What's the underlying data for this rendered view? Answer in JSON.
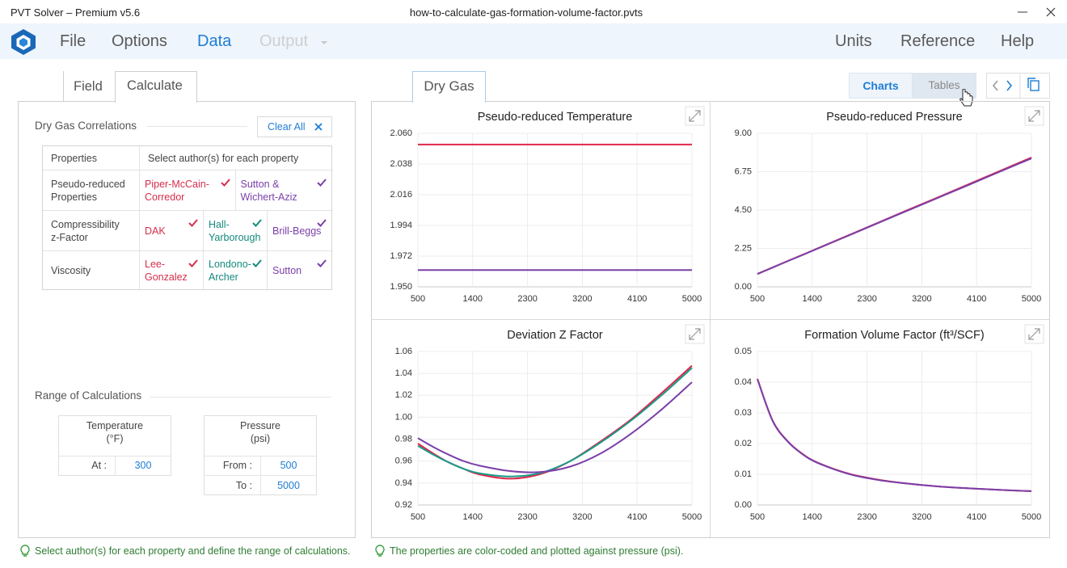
{
  "window": {
    "title": "PVT Solver – Premium v5.6",
    "file": "how-to-calculate-gas-formation-volume-factor.pvts"
  },
  "menu": {
    "left": [
      "File",
      "Options",
      "Data",
      "Output"
    ],
    "right": [
      "Units",
      "Reference",
      "Help"
    ]
  },
  "input": {
    "tabs": [
      "Field",
      "Calculate"
    ],
    "correlations": {
      "title": "Dry Gas Correlations",
      "clear": "Clear All",
      "header": [
        "Properties",
        "Select author(s) for each property"
      ],
      "rows": [
        {
          "property": "Pseudo-reduced Properties",
          "authors": [
            {
              "name": "Piper-McCain-Corredor",
              "color": "#d42e4c"
            },
            {
              "name": "Sutton & Wichert-Aziz",
              "color": "#7b3fa8"
            }
          ]
        },
        {
          "property": "Compressibility z-Factor",
          "authors": [
            {
              "name": "DAK",
              "color": "#d42e4c"
            },
            {
              "name": "Hall-Yarborough",
              "color": "#148a7c"
            },
            {
              "name": "Brill-Beggs",
              "color": "#7b3fa8"
            }
          ]
        },
        {
          "property": "Viscosity",
          "authors": [
            {
              "name": "Lee-Gonzalez",
              "color": "#d42e4c"
            },
            {
              "name": "Londono-Archer",
              "color": "#148a7c"
            },
            {
              "name": "Sutton",
              "color": "#7b3fa8"
            }
          ]
        }
      ]
    },
    "range": {
      "title": "Range of Calculations",
      "temperature": {
        "label": "Temperature",
        "unit": "(°F)",
        "at_label": "At :",
        "at": 300
      },
      "pressure": {
        "label": "Pressure",
        "unit": "(psi)",
        "from_label": "From :",
        "from": 500,
        "to_label": "To :",
        "to": 5000
      }
    }
  },
  "output": {
    "tab": "Dry Gas",
    "views": [
      "Charts",
      "Tables"
    ]
  },
  "hints": [
    "Select author(s) for each property and define the range of calculations.",
    "The properties are color-coded and plotted against pressure (psi)."
  ],
  "chart_data": [
    {
      "type": "line",
      "title": "Pseudo-reduced Temperature",
      "x": [
        500,
        750,
        1000,
        1250,
        1500,
        2000,
        2500,
        3000,
        3500,
        4000,
        4500,
        5000
      ],
      "xlim": [
        500,
        5000
      ],
      "xticks": [
        500,
        1400,
        2300,
        3200,
        4100,
        5000
      ],
      "ylim": [
        1.95,
        2.06
      ],
      "yticks": [
        {
          "value": 1.95,
          "label": "1.950"
        },
        1.972,
        1.994,
        2.016,
        2.038,
        {
          "value": 2.06,
          "label": "2.060"
        }
      ],
      "grid": true,
      "series": [
        {
          "color": "#e0264a",
          "values": [
            2.052,
            2.052,
            2.052,
            2.052,
            2.052,
            2.052,
            2.052,
            2.052,
            2.052,
            2.052,
            2.052,
            2.052
          ]
        },
        {
          "color": "#7a3fa8",
          "values": [
            1.962,
            1.962,
            1.962,
            1.962,
            1.962,
            1.962,
            1.962,
            1.962,
            1.962,
            1.962,
            1.962,
            1.962
          ]
        }
      ]
    },
    {
      "type": "line",
      "title": "Pseudo-reduced Pressure",
      "x": [
        500,
        750,
        1000,
        1250,
        1500,
        2000,
        2500,
        3000,
        3500,
        4000,
        4500,
        5000
      ],
      "xlim": [
        500,
        5000
      ],
      "xticks": [
        500,
        1400,
        2300,
        3200,
        4100,
        5000
      ],
      "ylim": [
        0,
        9
      ],
      "yticks": [
        {
          "value": 0,
          "label": "0.00"
        },
        {
          "value": 2.25,
          "label": "2.25"
        },
        {
          "value": 4.5,
          "label": "4.50"
        },
        6.75,
        {
          "value": 9,
          "label": "9.00"
        }
      ],
      "grid": true,
      "series": [
        {
          "color": "#e0264a",
          "values": [
            0.76,
            1.14,
            1.52,
            1.89,
            2.27,
            3.03,
            3.79,
            4.55,
            5.3,
            6.06,
            6.82,
            7.58
          ]
        },
        {
          "color": "#7a3fa8",
          "values": [
            0.75,
            1.13,
            1.51,
            1.88,
            2.26,
            3.01,
            3.77,
            4.52,
            5.27,
            6.02,
            6.78,
            7.53
          ]
        }
      ]
    },
    {
      "type": "line",
      "title": "Deviation Z Factor",
      "x": [
        500,
        750,
        1000,
        1250,
        1500,
        2000,
        2500,
        3000,
        3500,
        4000,
        4500,
        5000
      ],
      "xlim": [
        500,
        5000
      ],
      "xticks": [
        500,
        1400,
        2300,
        3200,
        4100,
        5000
      ],
      "ylim": [
        0.92,
        1.06
      ],
      "yticks": [
        0.92,
        0.94,
        0.96,
        0.98,
        {
          "value": 1,
          "label": "1.00"
        },
        1.02,
        1.04,
        1.06
      ],
      "grid": true,
      "series": [
        {
          "color": "#e0264a",
          "values": [
            0.976,
            0.967,
            0.959,
            0.953,
            0.948,
            0.944,
            0.948,
            0.96,
            0.978,
            0.998,
            1.022,
            1.047
          ]
        },
        {
          "color": "#1a9b8a",
          "values": [
            0.974,
            0.966,
            0.959,
            0.953,
            0.949,
            0.946,
            0.949,
            0.96,
            0.977,
            0.997,
            1.02,
            1.045
          ]
        },
        {
          "color": "#7a3fa8",
          "values": [
            0.981,
            0.973,
            0.966,
            0.96,
            0.956,
            0.951,
            0.95,
            0.955,
            0.967,
            0.985,
            1.007,
            1.032
          ]
        }
      ]
    },
    {
      "type": "line",
      "title": "Formation Volume Factor (ft³/SCF)",
      "x": [
        500,
        750,
        1000,
        1250,
        1500,
        2000,
        2500,
        3000,
        3500,
        4000,
        4500,
        5000
      ],
      "xlim": [
        500,
        5000
      ],
      "xticks": [
        500,
        1400,
        2300,
        3200,
        4100,
        5000
      ],
      "ylim": [
        0,
        0.05
      ],
      "yticks": [
        {
          "value": 0,
          "label": "0.00"
        },
        0.01,
        0.02,
        0.03,
        0.04,
        0.05
      ],
      "grid": true,
      "series": [
        {
          "color": "#e0264a",
          "values": [
            0.0411,
            0.0275,
            0.0207,
            0.0165,
            0.0137,
            0.0102,
            0.0082,
            0.0069,
            0.006,
            0.0054,
            0.0049,
            0.0045
          ]
        },
        {
          "color": "#7a3fa8",
          "values": [
            0.041,
            0.0274,
            0.0206,
            0.0164,
            0.0136,
            0.0101,
            0.0081,
            0.0069,
            0.006,
            0.0054,
            0.0049,
            0.0045
          ]
        }
      ]
    }
  ]
}
